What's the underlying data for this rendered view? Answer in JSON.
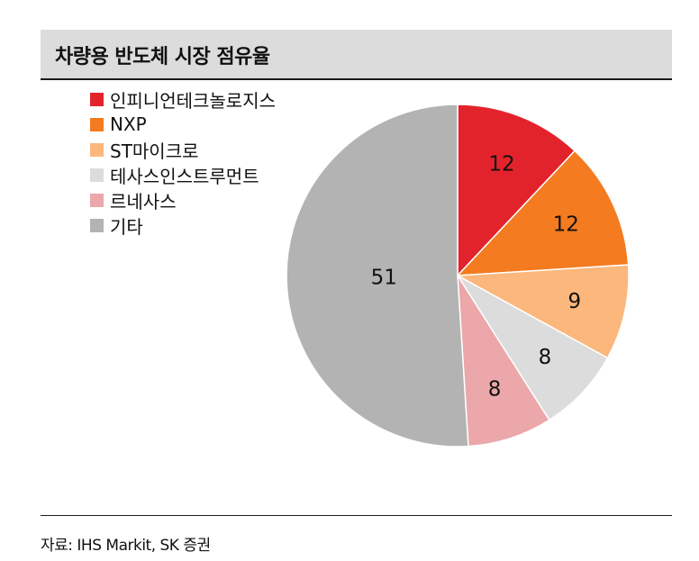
{
  "header": {
    "title": "차량용 반도체 시장 점유율"
  },
  "chart_data": {
    "type": "pie",
    "title": "차량용 반도체 시장 점유율",
    "slices": [
      {
        "label": "인피니언테크놀로지스",
        "value": 12,
        "color": "#e3232c"
      },
      {
        "label": "NXP",
        "value": 12,
        "color": "#f47b20"
      },
      {
        "label": "ST마이크로",
        "value": 9,
        "color": "#fbb77c"
      },
      {
        "label": "테사스인스트루먼트",
        "value": 8,
        "color": "#dcdcdc"
      },
      {
        "label": "르네사스",
        "value": 8,
        "color": "#eba7aa"
      },
      {
        "label": "기타",
        "value": 51,
        "color": "#b3b3b3"
      }
    ],
    "start": "12 o'clock",
    "direction": "clockwise",
    "legend_position": "top-left",
    "data_labels": "inside"
  },
  "footer": {
    "source": "자료: IHS Markit, SK 증권"
  }
}
